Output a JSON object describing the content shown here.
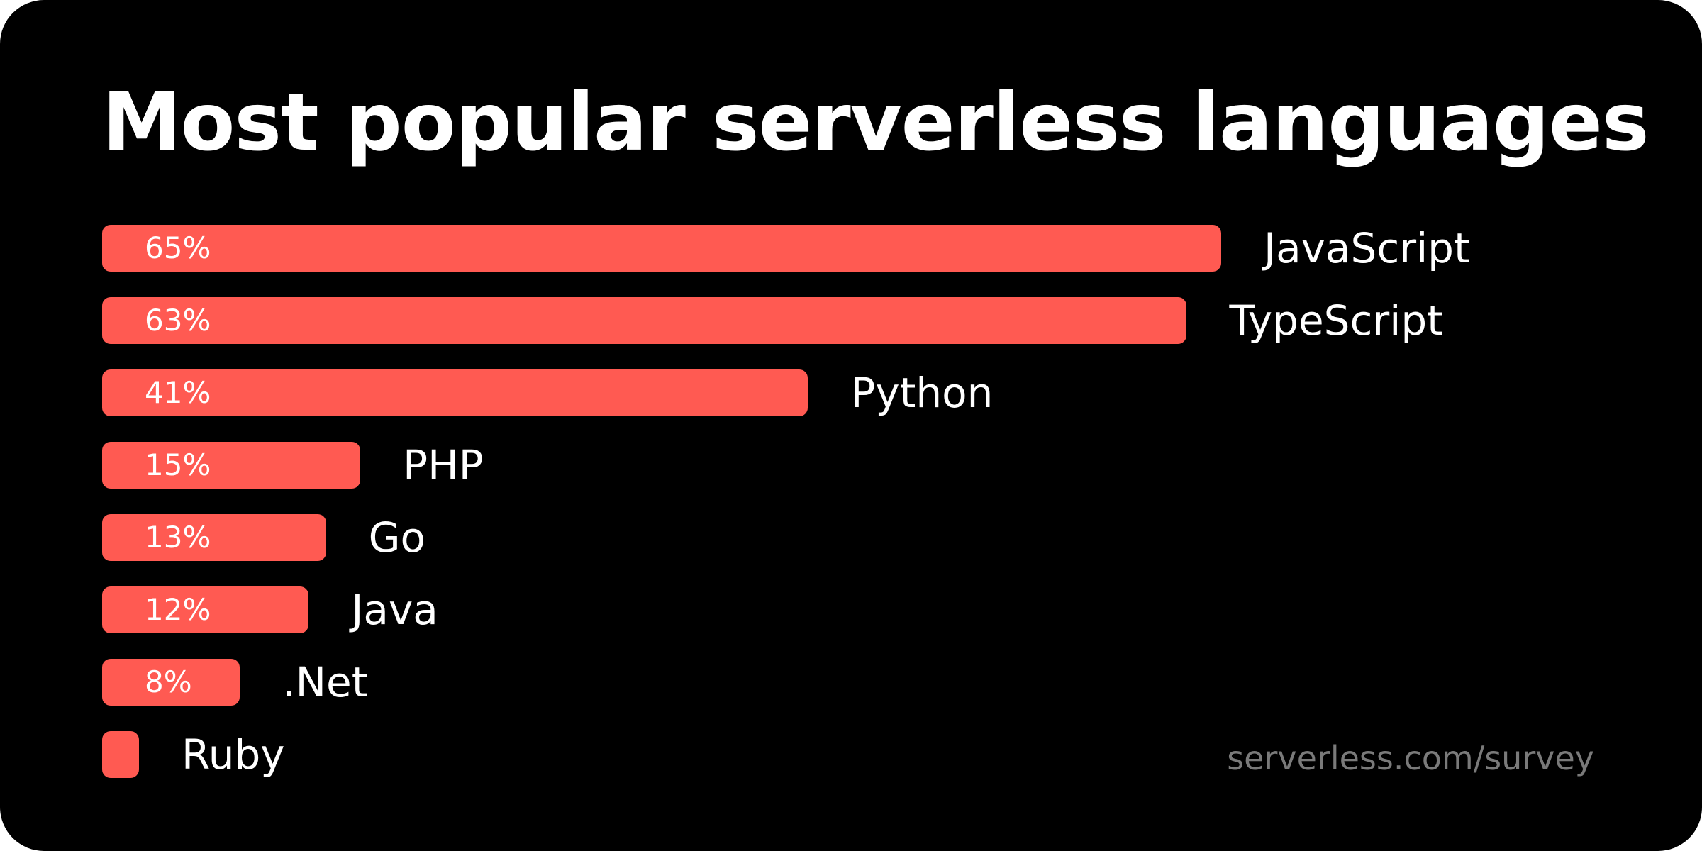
{
  "chart_data": {
    "type": "bar",
    "orientation": "horizontal",
    "title": "Most popular serverless languages",
    "categories": [
      "JavaScript",
      "TypeScript",
      "Python",
      "PHP",
      "Go",
      "Java",
      ".Net",
      "Ruby"
    ],
    "values": [
      65,
      63,
      41,
      15,
      13,
      12,
      8,
      2
    ],
    "data_labels": [
      "65%",
      "63%",
      "41%",
      "15%",
      "13%",
      "12%",
      "8%",
      ""
    ],
    "xlim": [
      0,
      65
    ],
    "grid": false,
    "bar_color": "#ff5a52",
    "source": "serverless.com/survey"
  }
}
